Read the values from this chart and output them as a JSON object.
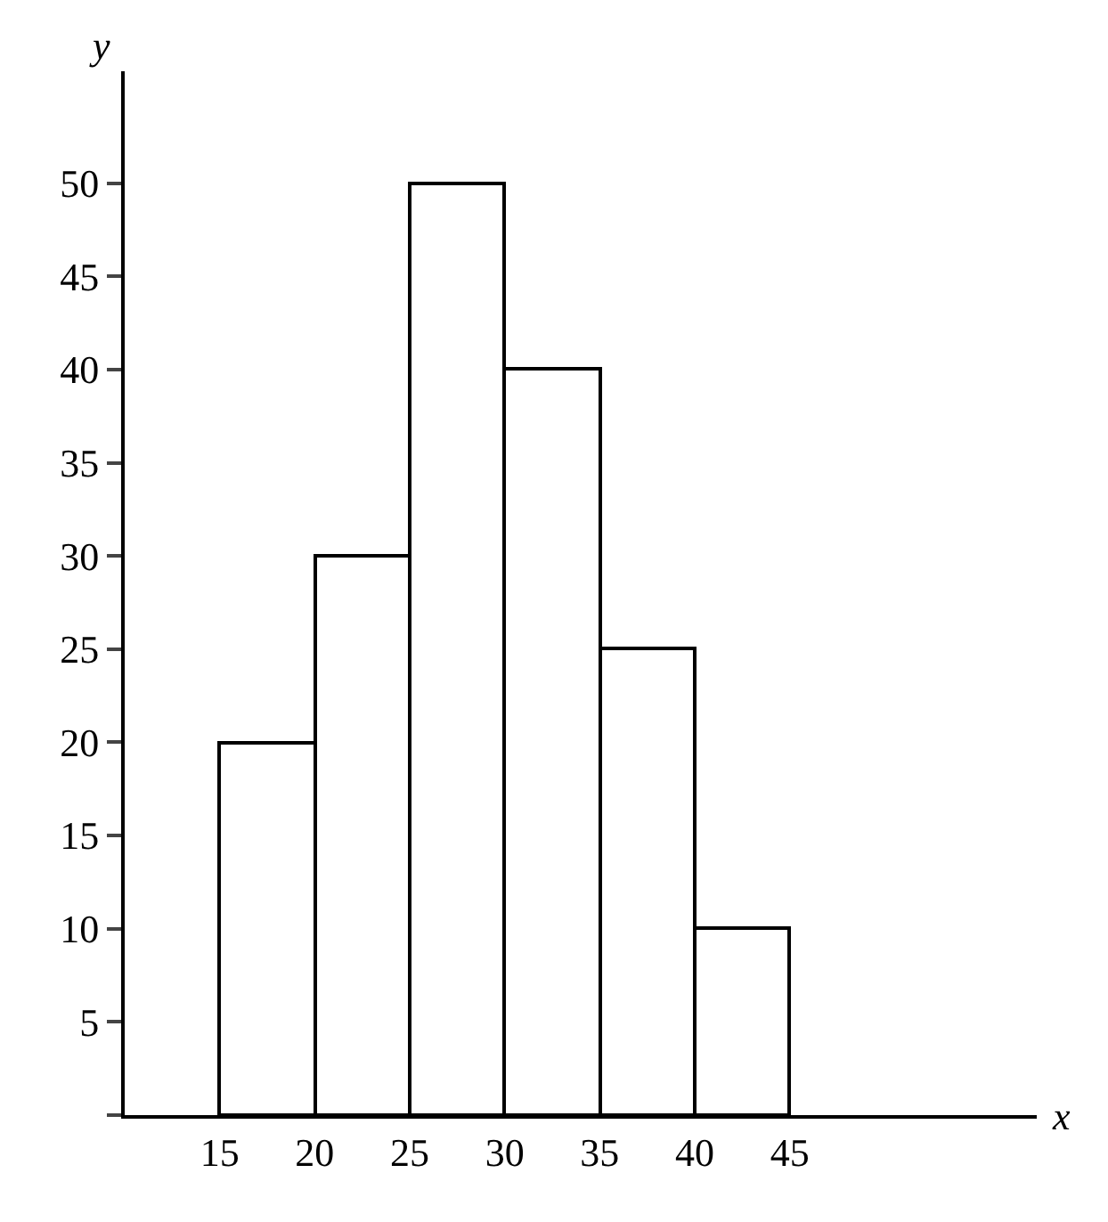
{
  "chart_data": {
    "type": "histogram",
    "xlabel": "x",
    "ylabel": "y",
    "bins": [
      15,
      20,
      25,
      30,
      35,
      40,
      45
    ],
    "values": [
      20,
      30,
      50,
      40,
      25,
      10
    ],
    "color": "#ffffff",
    "xlim": [
      10,
      58
    ],
    "ylim": [
      0,
      56
    ],
    "xticks": [
      15,
      20,
      25,
      30,
      35,
      40,
      45
    ],
    "yticks": [
      {
        "value": 0,
        "label": null
      },
      5,
      10,
      15,
      20,
      25,
      30,
      35,
      40,
      45,
      50
    ],
    "grid": false,
    "legend": false
  }
}
